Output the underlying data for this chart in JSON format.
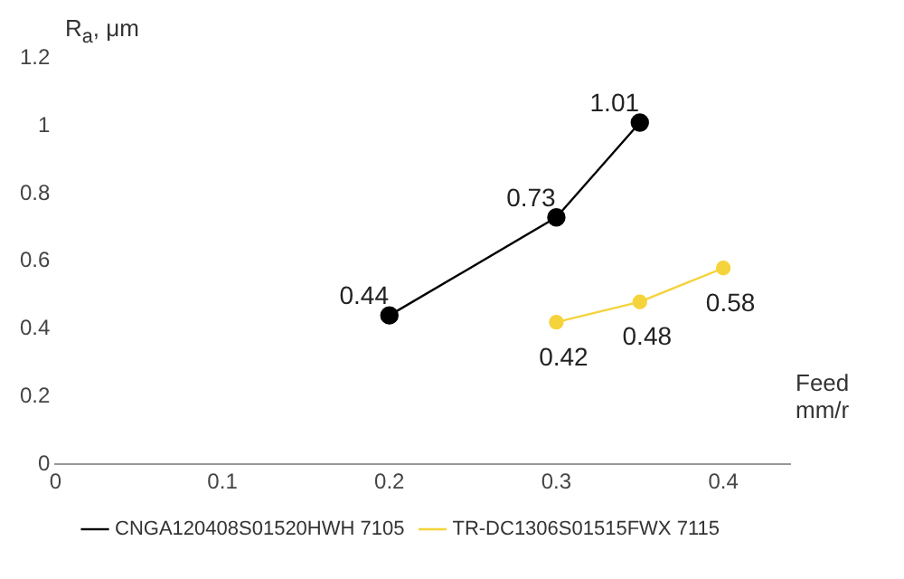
{
  "chart_data": {
    "type": "line",
    "ylabel": "R$_{a}$, μm",
    "xlabel": "Feed mm/r",
    "series": [
      {
        "name": "CNGA120408S01520HWH 7105",
        "color": "#000000",
        "x": [
          0.2,
          0.3,
          0.35
        ],
        "values": [
          0.44,
          0.73,
          1.01
        ]
      },
      {
        "name": "TR-DC1306S01515FWX 7115",
        "color": "#f5d33b",
        "x": [
          0.3,
          0.35,
          0.4
        ],
        "values": [
          0.42,
          0.48,
          0.58
        ]
      }
    ],
    "xlim": [
      0,
      0.44
    ],
    "xticks": [
      0,
      0.1,
      0.2,
      0.3,
      0.4
    ],
    "ylim": [
      0,
      1.2
    ],
    "yticks": [
      0,
      0.2,
      0.4,
      0.6,
      0.8,
      1,
      1.2
    ],
    "grid": false,
    "legend": "bottom",
    "marker": "circle",
    "line_style": "solid",
    "data_labels": true
  }
}
